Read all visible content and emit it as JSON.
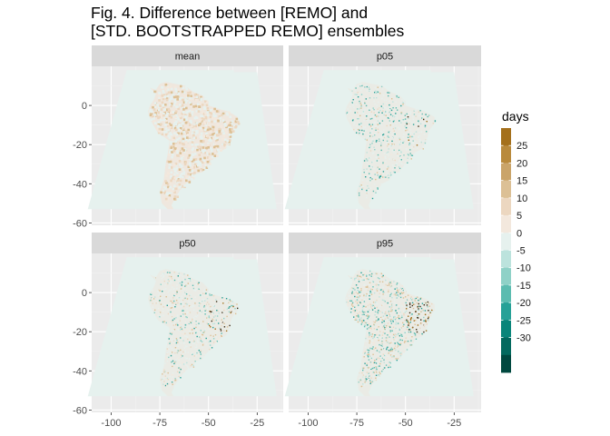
{
  "title_lines": [
    "Fig. 4. Difference between [REMO] and",
    "[STD. BOOTSTRAPPED REMO] ensembles"
  ],
  "chart_data": {
    "type": "heatmap",
    "title": "Fig. 4. Difference between [REMO] and [STD. BOOTSTRAPPED REMO] ensembles",
    "facets": [
      "mean",
      "p05",
      "p50",
      "p95"
    ],
    "facet_layout": "2x2",
    "x_ticks": [
      -100,
      -75,
      -50,
      -25
    ],
    "x_tick_labels": [
      "-100",
      "-75",
      "-50",
      "-25"
    ],
    "y_ticks": [
      0,
      -20,
      -40,
      -60
    ],
    "y_tick_labels": [
      "0",
      "-20",
      "-40",
      "-60"
    ],
    "xlim": [
      -110,
      -15
    ],
    "ylim": [
      -61,
      20
    ],
    "legend": {
      "title": "days",
      "placement": "right",
      "breaks": [
        25,
        20,
        15,
        10,
        5,
        0,
        -5,
        -10,
        -15,
        -20,
        -25,
        -30
      ],
      "labels": [
        "25",
        "20",
        "15",
        "10",
        "5",
        "0",
        "-5",
        "-10",
        "-15",
        "-20",
        "-25",
        "-30"
      ],
      "colors": [
        "#a4701c",
        "#b98a3c",
        "#caa469",
        "#dcc095",
        "#ecd7c0",
        "#f3e8dd",
        "#e6f1ee",
        "#bce3dd",
        "#8fd1c7",
        "#5cbcb0",
        "#27a197",
        "#0a857a",
        "#03695e",
        "#00483f"
      ]
    },
    "domain_outline_lonlat": [
      [
        -92,
        18
      ],
      [
        -86,
        18
      ],
      [
        -37,
        18
      ],
      [
        -37,
        17
      ],
      [
        -25,
        17
      ],
      [
        -15,
        -53
      ],
      [
        -112,
        -53
      ]
    ],
    "panel_background": "#ebebeb",
    "grid": true
  }
}
